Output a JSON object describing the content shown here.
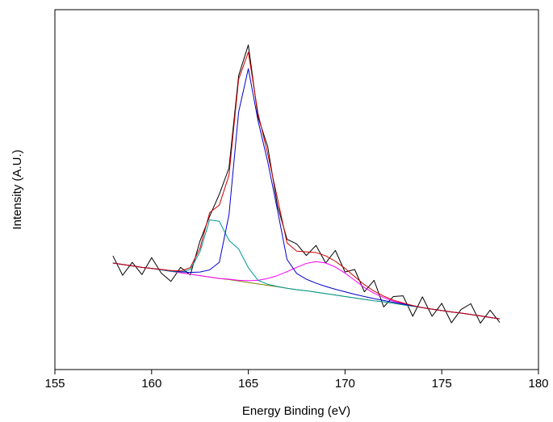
{
  "chart_data": {
    "type": "line",
    "xlabel": "Energy Binding (eV)",
    "ylabel": "Intensity (A.U.)",
    "xlim": [
      155,
      180
    ],
    "xticks": [
      155,
      160,
      165,
      170,
      175,
      180
    ],
    "ylim": [
      0,
      100
    ],
    "x": [
      158,
      158.5,
      159,
      159.5,
      160,
      160.5,
      161,
      161.5,
      162,
      162.5,
      163,
      163.5,
      164,
      164.5,
      165,
      165.5,
      166,
      166.5,
      167,
      167.5,
      168,
      168.5,
      169,
      169.5,
      170,
      170.5,
      171,
      171.5,
      172,
      172.5,
      173,
      173.5,
      174,
      174.5,
      175,
      175.5,
      176,
      176.5,
      177,
      177.5,
      178
    ],
    "series": [
      {
        "color": "#000000",
        "values": [
          31.6,
          26.2,
          29.8,
          26.4,
          31.1,
          26.8,
          24.5,
          28.4,
          26.3,
          35.7,
          42.6,
          48.7,
          56.0,
          81.7,
          90.2,
          70.2,
          62.0,
          45.7,
          36.2,
          34.9,
          31.7,
          34.5,
          29.6,
          33.1,
          27.1,
          27.8,
          21.6,
          24.8,
          17.4,
          20.3,
          20.5,
          14.8,
          20.2,
          14.8,
          18.4,
          13.0,
          16.7,
          18.3,
          12.9,
          16.5,
          13.1
        ]
      },
      {
        "color": "#808000",
        "values": [
          29.6,
          29.2,
          28.8,
          28.4,
          28.1,
          27.7,
          27.3,
          26.9,
          26.5,
          26.1,
          25.7,
          25.3,
          25.0,
          24.6,
          24.2,
          23.8,
          23.4,
          23.0,
          22.6,
          22.2,
          21.9,
          21.5,
          21.1,
          20.7,
          20.3,
          19.9,
          19.5,
          19.1,
          18.8,
          18.4,
          18.0,
          17.6,
          17.2,
          16.8,
          16.4,
          16.0,
          15.7,
          15.3,
          14.9,
          14.5,
          14.1
        ]
      },
      {
        "color": "#ff00ff",
        "values": [
          29.6,
          29.2,
          28.8,
          28.4,
          28.1,
          27.7,
          27.3,
          26.9,
          26.5,
          26.1,
          25.7,
          25.3,
          25.1,
          24.8,
          24.7,
          24.8,
          25.3,
          26.1,
          27.2,
          28.4,
          29.5,
          30.0,
          29.6,
          28.5,
          26.8,
          24.8,
          22.8,
          21.2,
          20.0,
          19.0,
          18.3,
          17.7,
          17.2,
          16.8,
          16.4,
          16.0,
          15.7,
          15.3,
          14.9,
          14.5,
          14.1
        ]
      },
      {
        "color": "#009999",
        "values": [
          29.6,
          29.2,
          28.8,
          28.4,
          28.1,
          27.7,
          27.3,
          27.1,
          27.8,
          32.7,
          41.6,
          41.2,
          35.9,
          33.5,
          28.3,
          24.8,
          23.7,
          23.1,
          22.6,
          22.2,
          21.9,
          21.5,
          21.1,
          20.7,
          20.3,
          19.9,
          19.5,
          19.1,
          18.8,
          18.4,
          18.0,
          17.6,
          17.2,
          16.8,
          16.4,
          16.0,
          15.7,
          15.3,
          14.9,
          14.5,
          14.1
        ]
      },
      {
        "color": "#0000cc",
        "values": [
          29.6,
          29.2,
          28.8,
          28.4,
          28.1,
          27.8,
          27.5,
          27.2,
          27.0,
          27.1,
          27.7,
          29.8,
          43.0,
          71.6,
          83.6,
          69.2,
          57.8,
          44.5,
          30.6,
          26.7,
          25.1,
          24.0,
          23.1,
          22.3,
          21.6,
          20.9,
          20.3,
          19.7,
          19.2,
          18.7,
          18.2,
          17.7,
          17.2,
          16.8,
          16.4,
          16.0,
          15.7,
          15.3,
          14.9,
          14.5,
          14.1
        ]
      },
      {
        "color": "#cc0000",
        "values": [
          29.6,
          29.2,
          28.8,
          28.4,
          28.1,
          27.8,
          27.5,
          27.4,
          28.3,
          33.7,
          43.6,
          45.7,
          54.0,
          80.7,
          88.2,
          71.2,
          60.0,
          47.7,
          35.2,
          32.9,
          32.7,
          32.5,
          31.6,
          30.1,
          28.1,
          25.8,
          23.6,
          21.8,
          20.4,
          19.3,
          18.5,
          17.8,
          17.2,
          16.8,
          16.4,
          16.0,
          15.7,
          15.3,
          14.9,
          14.5,
          14.1
        ]
      }
    ]
  }
}
